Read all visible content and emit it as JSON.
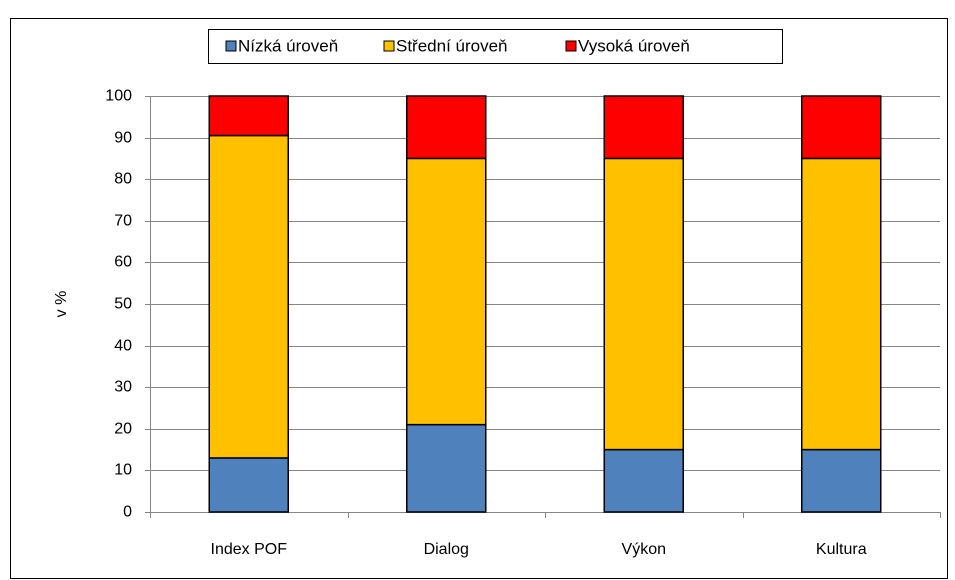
{
  "chart_data": {
    "type": "stacked_bar",
    "categories": [
      "Index POF",
      "Dialog",
      "Výkon",
      "Kultura"
    ],
    "series": [
      {
        "name": "Nízká úroveň",
        "color": "#4f81bd",
        "values": [
          13,
          21,
          15,
          15
        ]
      },
      {
        "name": "Střední úroveň",
        "color": "#ffc000",
        "values": [
          77.5,
          64,
          70,
          70
        ]
      },
      {
        "name": "Vysoká úroveň",
        "color": "#ff0000",
        "values": [
          9.5,
          15,
          15,
          15
        ]
      }
    ],
    "ylabel": "v %",
    "ylim": [
      0,
      100
    ],
    "yticks": [
      0,
      10,
      20,
      30,
      40,
      50,
      60,
      70,
      80,
      90,
      100
    ],
    "grid": true,
    "legend": "top"
  }
}
